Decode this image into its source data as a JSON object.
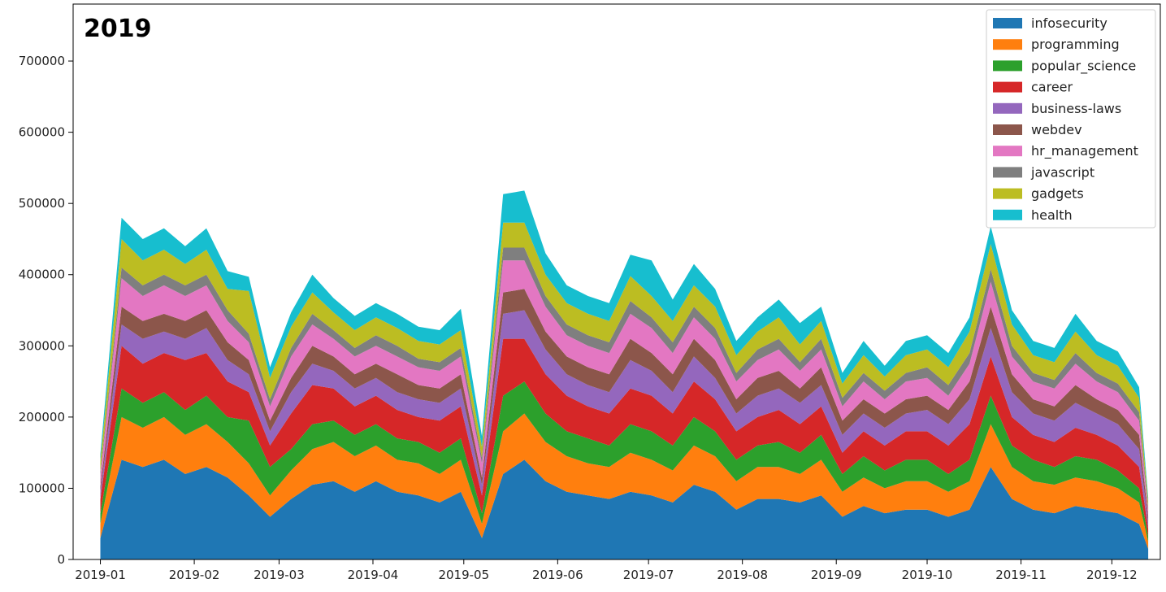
{
  "chart_data": {
    "type": "area",
    "stacked": true,
    "title": "2019",
    "xlabel": "",
    "ylabel": "",
    "x_range": [
      "2018-12-23",
      "2019-12-17"
    ],
    "ylim": [
      0,
      780000
    ],
    "grid": false,
    "legend_position": "top-right",
    "x_ticks": [
      "2019-01",
      "2019-02",
      "2019-03",
      "2019-04",
      "2019-05",
      "2019-06",
      "2019-07",
      "2019-08",
      "2019-09",
      "2019-10",
      "2019-11",
      "2019-12"
    ],
    "y_ticks": [
      "0",
      "100000",
      "200000",
      "300000",
      "400000",
      "500000",
      "600000",
      "700000"
    ],
    "y_tick_values": [
      0,
      100000,
      200000,
      300000,
      400000,
      500000,
      600000,
      700000
    ],
    "x": [
      "2019-01-01",
      "2019-01-08",
      "2019-01-15",
      "2019-01-22",
      "2019-01-29",
      "2019-02-05",
      "2019-02-12",
      "2019-02-19",
      "2019-02-26",
      "2019-03-05",
      "2019-03-12",
      "2019-03-19",
      "2019-03-26",
      "2019-04-02",
      "2019-04-09",
      "2019-04-16",
      "2019-04-23",
      "2019-04-30",
      "2019-05-07",
      "2019-05-14",
      "2019-05-21",
      "2019-05-28",
      "2019-06-04",
      "2019-06-11",
      "2019-06-18",
      "2019-06-25",
      "2019-07-02",
      "2019-07-09",
      "2019-07-16",
      "2019-07-23",
      "2019-07-30",
      "2019-08-06",
      "2019-08-13",
      "2019-08-20",
      "2019-08-27",
      "2019-09-03",
      "2019-09-10",
      "2019-09-17",
      "2019-09-24",
      "2019-10-01",
      "2019-10-08",
      "2019-10-15",
      "2019-10-22",
      "2019-10-29",
      "2019-11-05",
      "2019-11-12",
      "2019-11-19",
      "2019-11-26",
      "2019-12-03",
      "2019-12-10",
      "2019-12-13"
    ],
    "series": [
      {
        "name": "infosecurity",
        "color": "#1f77b4",
        "values": [
          30000,
          140000,
          130000,
          140000,
          120000,
          130000,
          115000,
          90000,
          60000,
          85000,
          105000,
          110000,
          95000,
          110000,
          95000,
          90000,
          80000,
          95000,
          30000,
          120000,
          140000,
          110000,
          95000,
          90000,
          85000,
          95000,
          90000,
          80000,
          105000,
          95000,
          70000,
          85000,
          85000,
          80000,
          90000,
          60000,
          75000,
          65000,
          70000,
          70000,
          60000,
          70000,
          130000,
          85000,
          70000,
          65000,
          75000,
          70000,
          65000,
          50000,
          15000
        ]
      },
      {
        "name": "programming",
        "color": "#ff7f0e",
        "values": [
          20000,
          60000,
          55000,
          60000,
          55000,
          60000,
          50000,
          45000,
          30000,
          40000,
          50000,
          55000,
          50000,
          50000,
          45000,
          45000,
          40000,
          45000,
          20000,
          60000,
          65000,
          55000,
          50000,
          45000,
          45000,
          55000,
          50000,
          45000,
          55000,
          50000,
          40000,
          45000,
          45000,
          40000,
          50000,
          35000,
          40000,
          35000,
          40000,
          40000,
          35000,
          40000,
          60000,
          45000,
          40000,
          40000,
          40000,
          40000,
          35000,
          30000,
          10000
        ]
      },
      {
        "name": "popular_science",
        "color": "#2ca02c",
        "values": [
          15000,
          40000,
          35000,
          35000,
          35000,
          40000,
          35000,
          60000,
          40000,
          30000,
          35000,
          30000,
          30000,
          30000,
          30000,
          30000,
          30000,
          30000,
          15000,
          50000,
          45000,
          40000,
          35000,
          35000,
          30000,
          40000,
          40000,
          35000,
          40000,
          35000,
          30000,
          30000,
          35000,
          30000,
          35000,
          25000,
          30000,
          25000,
          30000,
          30000,
          25000,
          30000,
          40000,
          30000,
          30000,
          25000,
          30000,
          30000,
          25000,
          20000,
          8000
        ]
      },
      {
        "name": "career",
        "color": "#d62728",
        "values": [
          20000,
          60000,
          55000,
          55000,
          70000,
          60000,
          50000,
          40000,
          30000,
          50000,
          55000,
          45000,
          40000,
          40000,
          40000,
          35000,
          45000,
          45000,
          25000,
          80000,
          60000,
          55000,
          50000,
          45000,
          45000,
          50000,
          50000,
          45000,
          50000,
          45000,
          40000,
          40000,
          45000,
          40000,
          40000,
          30000,
          35000,
          35000,
          40000,
          40000,
          40000,
          50000,
          55000,
          40000,
          35000,
          35000,
          40000,
          35000,
          35000,
          30000,
          10000
        ]
      },
      {
        "name": "business-laws",
        "color": "#9467bd",
        "values": [
          10000,
          30000,
          35000,
          30000,
          30000,
          35000,
          30000,
          25000,
          20000,
          30000,
          30000,
          25000,
          25000,
          25000,
          25000,
          25000,
          25000,
          25000,
          15000,
          35000,
          40000,
          35000,
          30000,
          30000,
          30000,
          40000,
          35000,
          30000,
          35000,
          30000,
          25000,
          30000,
          30000,
          30000,
          30000,
          25000,
          25000,
          25000,
          25000,
          30000,
          30000,
          35000,
          40000,
          35000,
          30000,
          30000,
          35000,
          30000,
          30000,
          25000,
          10000
        ]
      },
      {
        "name": "webdev",
        "color": "#8c564b",
        "values": [
          8000,
          25000,
          25000,
          25000,
          25000,
          25000,
          25000,
          20000,
          15000,
          20000,
          25000,
          20000,
          20000,
          20000,
          25000,
          20000,
          20000,
          20000,
          10000,
          30000,
          30000,
          25000,
          25000,
          25000,
          25000,
          30000,
          25000,
          25000,
          25000,
          25000,
          20000,
          25000,
          25000,
          20000,
          25000,
          20000,
          20000,
          20000,
          20000,
          20000,
          20000,
          25000,
          30000,
          25000,
          20000,
          20000,
          25000,
          20000,
          20000,
          20000,
          8000
        ]
      },
      {
        "name": "hr_management",
        "color": "#e377c2",
        "values": [
          15000,
          40000,
          35000,
          40000,
          35000,
          35000,
          30000,
          25000,
          20000,
          30000,
          30000,
          25000,
          25000,
          25000,
          25000,
          25000,
          25000,
          25000,
          20000,
          45000,
          40000,
          35000,
          30000,
          30000,
          30000,
          35000,
          35000,
          30000,
          30000,
          30000,
          25000,
          25000,
          30000,
          25000,
          25000,
          20000,
          25000,
          20000,
          25000,
          25000,
          20000,
          25000,
          35000,
          25000,
          25000,
          25000,
          30000,
          25000,
          25000,
          20000,
          8000
        ]
      },
      {
        "name": "javascript",
        "color": "#7f7f7f",
        "values": [
          5000,
          15000,
          15000,
          15000,
          15000,
          15000,
          15000,
          12000,
          10000,
          12000,
          15000,
          12000,
          12000,
          15000,
          15000,
          12000,
          12000,
          12000,
          8000,
          18000,
          18000,
          15000,
          15000,
          15000,
          15000,
          18000,
          15000,
          15000,
          15000,
          15000,
          12000,
          15000,
          15000,
          12000,
          15000,
          12000,
          12000,
          12000,
          12000,
          15000,
          15000,
          15000,
          18000,
          15000,
          12000,
          12000,
          15000,
          12000,
          12000,
          12000,
          5000
        ]
      },
      {
        "name": "gadgets",
        "color": "#bcbd22",
        "values": [
          15000,
          40000,
          35000,
          35000,
          30000,
          35000,
          30000,
          60000,
          30000,
          30000,
          30000,
          25000,
          25000,
          25000,
          25000,
          25000,
          25000,
          25000,
          15000,
          35000,
          35000,
          30000,
          30000,
          30000,
          30000,
          35000,
          30000,
          30000,
          30000,
          30000,
          25000,
          25000,
          30000,
          25000,
          25000,
          20000,
          25000,
          20000,
          25000,
          25000,
          25000,
          30000,
          35000,
          30000,
          25000,
          25000,
          30000,
          25000,
          25000,
          20000,
          8000
        ]
      },
      {
        "name": "health",
        "color": "#17becf",
        "values": [
          10000,
          30000,
          30000,
          30000,
          25000,
          30000,
          25000,
          20000,
          15000,
          20000,
          25000,
          20000,
          20000,
          20000,
          20000,
          20000,
          20000,
          30000,
          15000,
          40000,
          45000,
          30000,
          25000,
          25000,
          25000,
          30000,
          50000,
          30000,
          30000,
          25000,
          20000,
          20000,
          25000,
          30000,
          20000,
          15000,
          20000,
          15000,
          20000,
          20000,
          20000,
          20000,
          25000,
          20000,
          20000,
          20000,
          25000,
          20000,
          20000,
          15000,
          5000
        ]
      }
    ]
  }
}
